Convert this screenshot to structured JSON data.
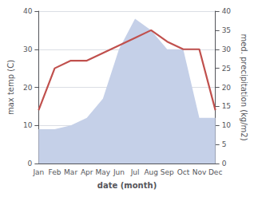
{
  "chart_data": {
    "type": "line",
    "xlabel": "date (month)",
    "ylabel": "max temp (C)",
    "y2label": "med. precipitation (kg/m2)",
    "categories": [
      "Jan",
      "Feb",
      "Mar",
      "Apr",
      "May",
      "Jun",
      "Jul",
      "Aug",
      "Sep",
      "Oct",
      "Nov",
      "Dec"
    ],
    "series": [
      {
        "type": "area",
        "axis": "y2",
        "color": "#c5d0e8",
        "values": [
          9,
          9,
          10,
          12,
          17,
          30,
          38,
          35,
          30,
          30,
          12,
          12
        ]
      },
      {
        "type": "line",
        "color": "#c0504d",
        "values": [
          14,
          25,
          27,
          27,
          29,
          31,
          33,
          35,
          32,
          30,
          30,
          14
        ]
      }
    ],
    "ylim": [
      0,
      40
    ],
    "yticks": [
      0,
      10,
      20,
      30,
      40
    ],
    "y2lim": [
      0,
      40
    ],
    "y2ticks": [
      0,
      5,
      10,
      15,
      20,
      25,
      30,
      35,
      40
    ],
    "grid": true
  }
}
